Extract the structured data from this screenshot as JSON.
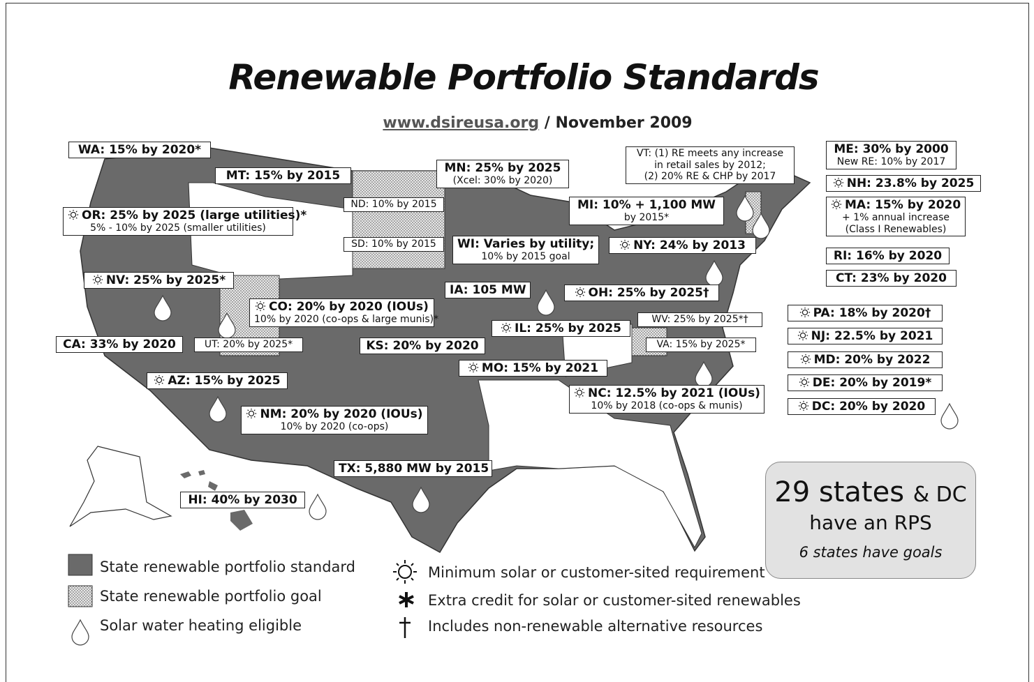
{
  "title": "Renewable Portfolio Standards",
  "subtitle": {
    "url": "www.dsireusa.org",
    "date": "/ November 2009"
  },
  "labels": [
    {
      "lines": [
        "WA: 15% by 2020*"
      ]
    },
    {
      "lines": [
        "MT: 15% by 2015"
      ]
    },
    {
      "lines": [
        "OR: 25% by 2025 (large utilities)*",
        "5% - 10% by 2025 (smaller utilities)"
      ],
      "solar": true
    },
    {
      "lines": [
        "ND: 10% by 2015"
      ]
    },
    {
      "lines": [
        "SD: 10% by 2015"
      ]
    },
    {
      "lines": [
        "MN: 25% by 2025",
        "(Xcel: 30% by 2020)"
      ]
    },
    {
      "lines": [
        "WI: Varies by utility;",
        "10% by 2015 goal"
      ]
    },
    {
      "lines": [
        "MI: 10% + 1,100 MW",
        "by 2015*"
      ]
    },
    {
      "lines": [
        "VT: (1) RE meets any increase",
        "in retail sales by 2012;",
        "(2) 20% RE & CHP by 2017"
      ]
    },
    {
      "lines": [
        "ME: 30% by 2000",
        "New RE: 10% by 2017"
      ]
    },
    {
      "lines": [
        "NH: 23.8% by 2025"
      ],
      "solar": true
    },
    {
      "lines": [
        "MA: 15% by 2020",
        "+ 1% annual increase",
        "(Class I Renewables)"
      ],
      "solar": true
    },
    {
      "lines": [
        "RI: 16% by 2020"
      ]
    },
    {
      "lines": [
        "CT: 23% by 2020"
      ]
    },
    {
      "lines": [
        "NY: 24% by 2013"
      ],
      "solar": true
    },
    {
      "lines": [
        "NV: 25% by 2025*"
      ],
      "solar": true
    },
    {
      "lines": [
        "IA: 105 MW"
      ]
    },
    {
      "lines": [
        "OH: 25% by 2025†"
      ],
      "solar": true
    },
    {
      "lines": [
        "CO: 20% by 2020 (IOUs)",
        "10% by 2020 (co-ops & large munis)*"
      ],
      "solar": true
    },
    {
      "lines": [
        "CA: 33% by 2020"
      ]
    },
    {
      "lines": [
        "UT: 20% by 2025*"
      ]
    },
    {
      "lines": [
        "KS: 20% by 2020"
      ]
    },
    {
      "lines": [
        "IL: 25% by 2025"
      ],
      "solar": true
    },
    {
      "lines": [
        "WV: 25% by 2025*†"
      ]
    },
    {
      "lines": [
        "VA: 15% by 2025*"
      ]
    },
    {
      "lines": [
        "MO: 15% by 2021"
      ],
      "solar": true
    },
    {
      "lines": [
        "AZ: 15% by 2025"
      ],
      "solar": true
    },
    {
      "lines": [
        "NC: 12.5% by 2021 (IOUs)",
        "10% by 2018 (co-ops & munis)"
      ],
      "solar": true
    },
    {
      "lines": [
        "NM: 20% by 2020 (IOUs)",
        "10% by 2020 (co-ops)"
      ],
      "solar": true
    },
    {
      "lines": [
        "TX: 5,880 MW by 2015"
      ]
    },
    {
      "lines": [
        "HI: 40% by 2030"
      ]
    },
    {
      "lines": [
        "PA: 18% by 2020†"
      ],
      "solar": true
    },
    {
      "lines": [
        "NJ: 22.5% by 2021"
      ],
      "solar": true
    },
    {
      "lines": [
        "MD: 20% by 2022"
      ],
      "solar": true
    },
    {
      "lines": [
        "DE: 20% by 2019*"
      ],
      "solar": true
    },
    {
      "lines": [
        "DC: 20% by 2020"
      ],
      "solar": true
    }
  ],
  "summary": {
    "count": "29 states",
    "dc": "& DC",
    "rps": "have an RPS",
    "goals": "6 states have goals"
  },
  "legend": [
    "State renewable portfolio standard",
    "State renewable portfolio goal",
    "Solar water heating eligible",
    "Minimum solar or customer-sited requirement",
    "Extra credit for solar or customer-sited renewables",
    "Includes non-renewable alternative resources"
  ]
}
